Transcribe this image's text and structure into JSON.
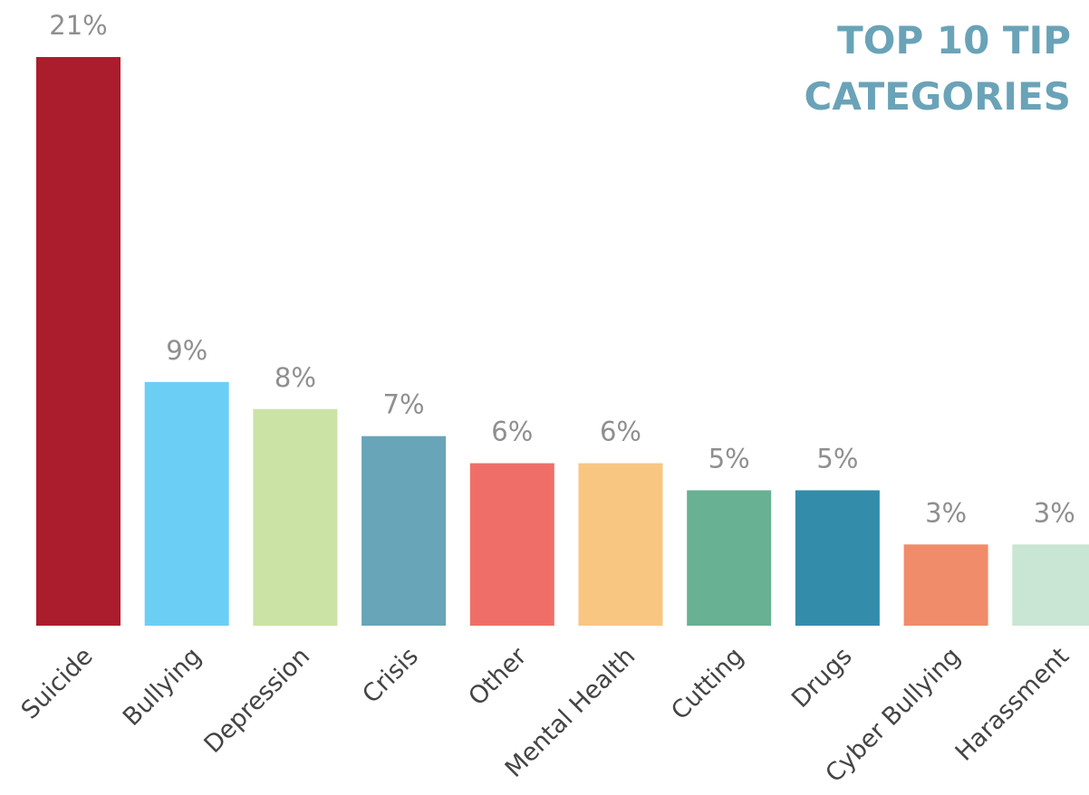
{
  "chart_data": {
    "type": "bar",
    "title": "TOP 10 TIP CATEGORIES",
    "categories": [
      "Suicide",
      "Bullying",
      "Depression",
      "Crisis",
      "Other",
      "Mental Health",
      "Cutting",
      "Drugs",
      "Cyber Bullying",
      "Harassment"
    ],
    "values": [
      21,
      9,
      8,
      7,
      6,
      6,
      5,
      5,
      3,
      3
    ],
    "value_labels": [
      "21%",
      "9%",
      "8%",
      "7%",
      "6%",
      "6%",
      "5%",
      "5%",
      "3%",
      "3%"
    ],
    "colors": [
      "#ab1c2c",
      "#6bcff5",
      "#cbe3a5",
      "#68a5b8",
      "#ef6f68",
      "#f9c682",
      "#68b193",
      "#348cab",
      "#f08c6a",
      "#c9e5d4"
    ]
  }
}
